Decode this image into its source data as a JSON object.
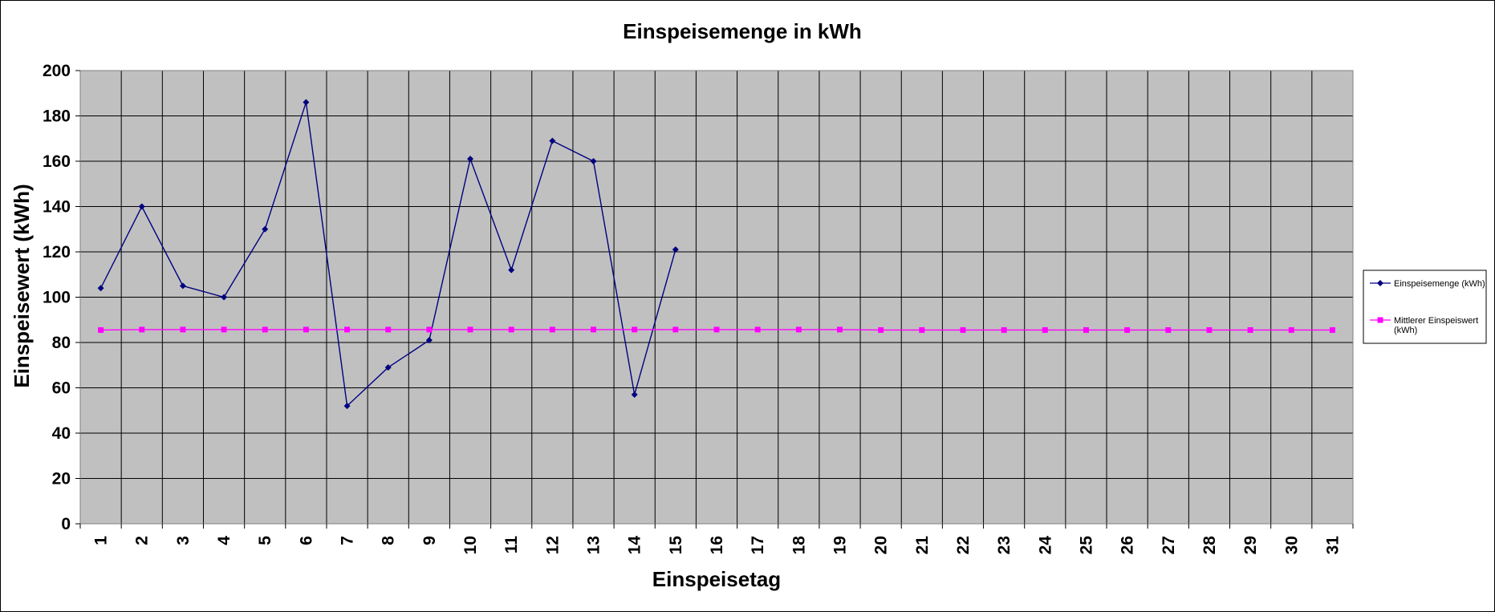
{
  "chart_data": {
    "type": "line",
    "title": "Einspeisemenge in kWh",
    "xlabel": "Einspeisetag",
    "ylabel": "Einspeisewert  (kWh)",
    "ylim": [
      0,
      200
    ],
    "yticks": [
      0,
      20,
      40,
      60,
      80,
      100,
      120,
      140,
      160,
      180,
      200
    ],
    "categories": [
      "1",
      "2",
      "3",
      "4",
      "5",
      "6",
      "7",
      "8",
      "9",
      "10",
      "11",
      "12",
      "13",
      "14",
      "15",
      "16",
      "17",
      "18",
      "19",
      "20",
      "21",
      "22",
      "23",
      "24",
      "25",
      "26",
      "27",
      "28",
      "29",
      "30",
      "31"
    ],
    "grid": true,
    "plot_background": "#c0c0c0",
    "legend_position": "right",
    "series": [
      {
        "name": "Einspeisemenge (kWh)",
        "color": "#000080",
        "marker": "diamond",
        "values": [
          104,
          140,
          105,
          100,
          130,
          186,
          52,
          69,
          81,
          161,
          112,
          169,
          160,
          57,
          121,
          null,
          null,
          null,
          null,
          null,
          null,
          null,
          null,
          null,
          null,
          null,
          null,
          null,
          null,
          null,
          null
        ]
      },
      {
        "name": "Mittlerer Einspeiswert (kWh)",
        "color": "#ff00ff",
        "marker": "square",
        "values": [
          85.5,
          85.7,
          85.7,
          85.7,
          85.7,
          85.7,
          85.7,
          85.7,
          85.7,
          85.7,
          85.7,
          85.7,
          85.7,
          85.7,
          85.7,
          85.7,
          85.7,
          85.7,
          85.7,
          85.5,
          85.5,
          85.5,
          85.5,
          85.5,
          85.5,
          85.5,
          85.5,
          85.5,
          85.5,
          85.5,
          85.5
        ]
      }
    ]
  }
}
